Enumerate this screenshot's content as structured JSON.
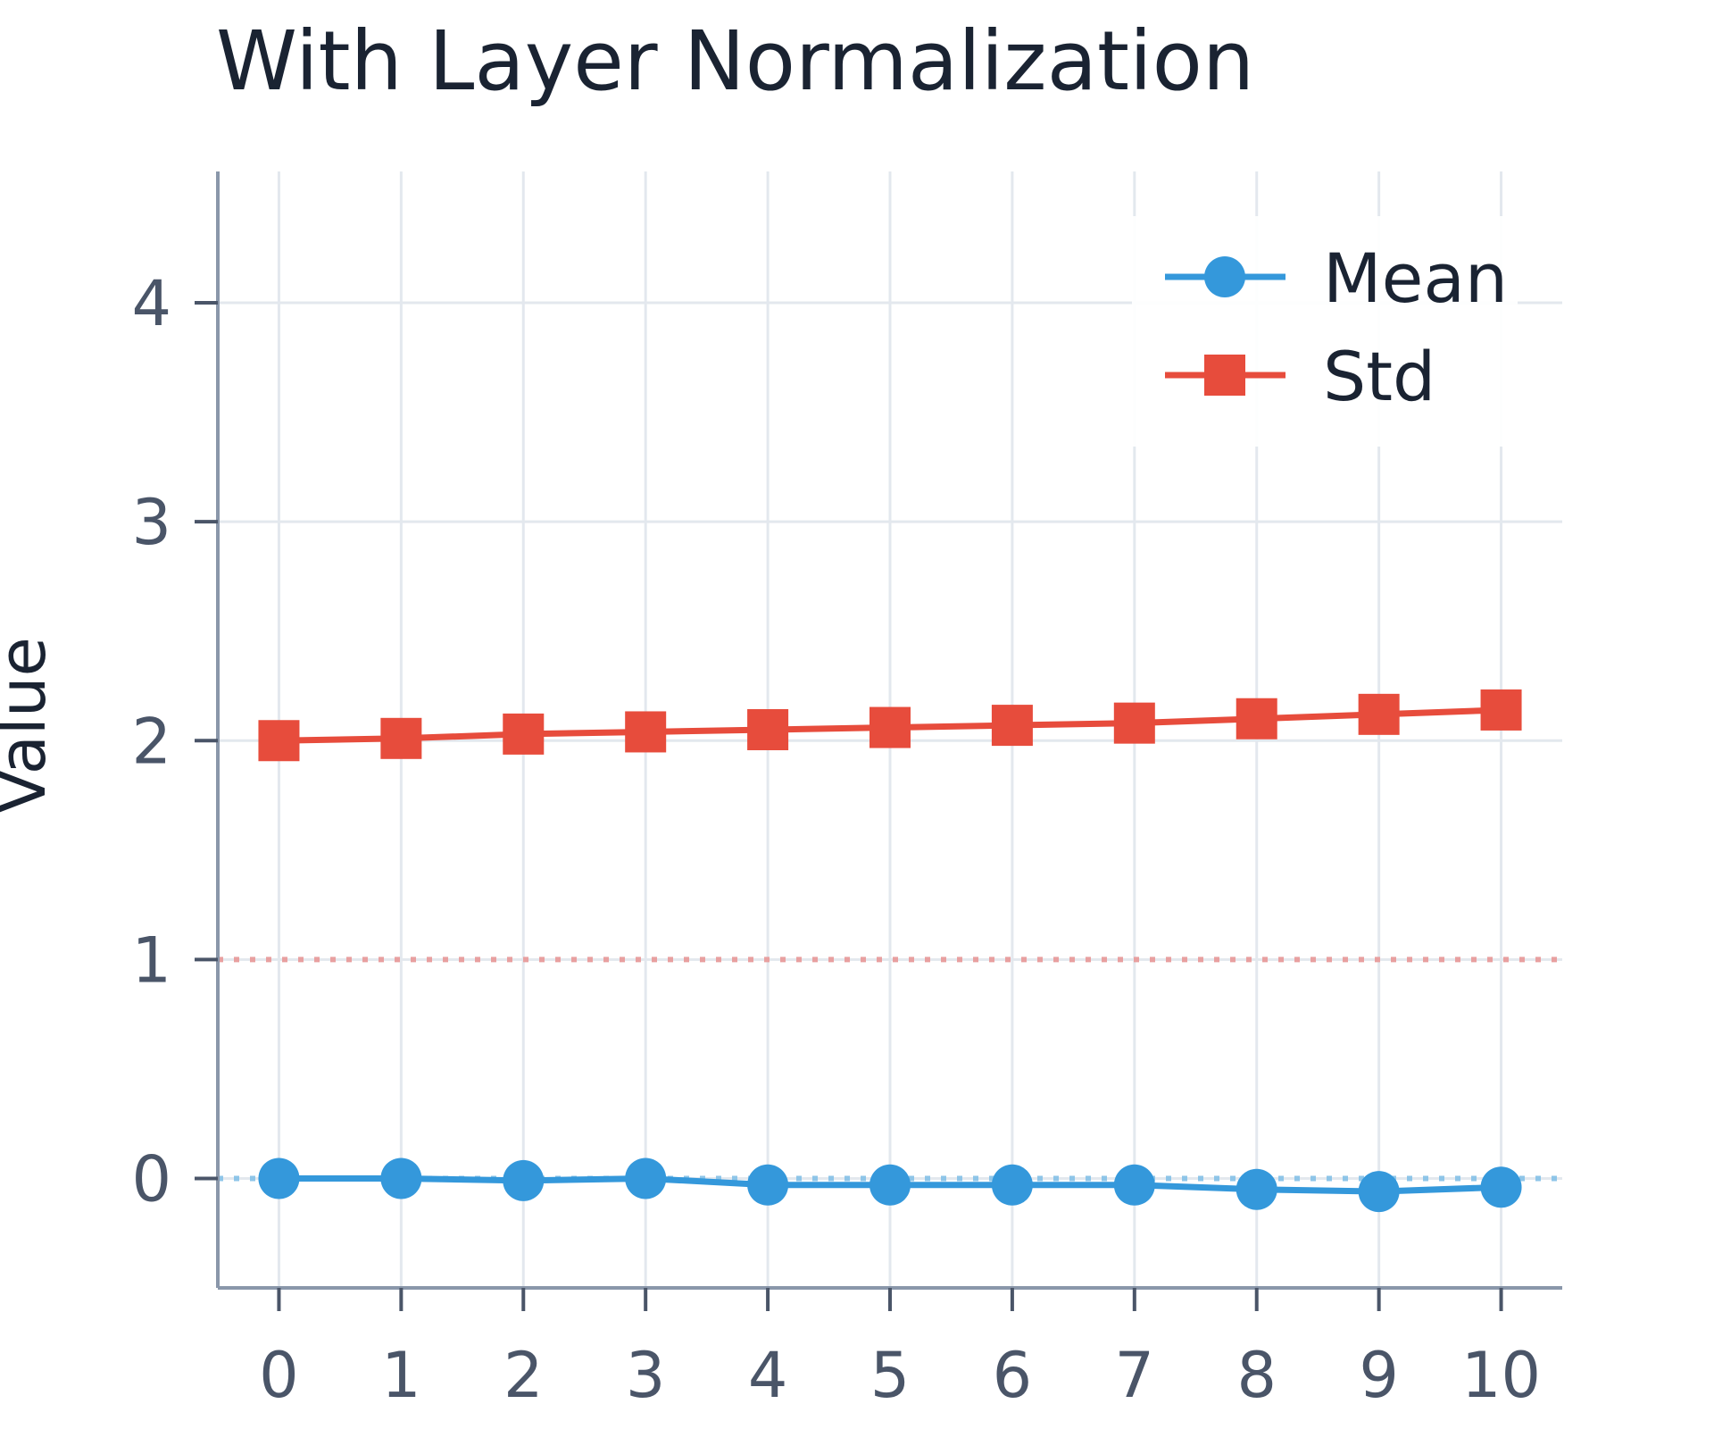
{
  "chart_data": {
    "type": "line",
    "title": "With Layer Normalization",
    "xlabel": "",
    "ylabel": "Value",
    "x": [
      0,
      1,
      2,
      3,
      4,
      5,
      6,
      7,
      8,
      9,
      10
    ],
    "xticks": [
      "0",
      "1",
      "2",
      "3",
      "4",
      "5",
      "6",
      "7",
      "8",
      "9",
      "10"
    ],
    "yticks": [
      0,
      1,
      2,
      3,
      4
    ],
    "ytick_labels": [
      "0",
      "1",
      "2",
      "3",
      "4"
    ],
    "xlim": [
      -0.5,
      10.5
    ],
    "ylim": [
      -0.5,
      4.6
    ],
    "grid": true,
    "legend_position": "top-right",
    "reference_lines": [
      {
        "y": 1,
        "color": "#e8a0a0",
        "style": "dotted"
      },
      {
        "y": 0,
        "color": "#8ec5e8",
        "style": "dotted"
      }
    ],
    "series": [
      {
        "name": "Mean",
        "color": "#3498db",
        "marker": "circle",
        "values": [
          0.0,
          0.0,
          -0.01,
          0.0,
          -0.03,
          -0.03,
          -0.03,
          -0.03,
          -0.05,
          -0.06,
          -0.04
        ]
      },
      {
        "name": "Std",
        "color": "#e74c3c",
        "marker": "square",
        "values": [
          2.0,
          2.01,
          2.03,
          2.04,
          2.05,
          2.06,
          2.07,
          2.08,
          2.1,
          2.12,
          2.14
        ]
      }
    ]
  }
}
